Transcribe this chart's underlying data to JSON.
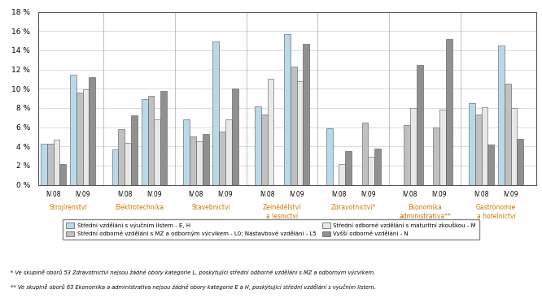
{
  "groups": [
    "Strojírenství",
    "Elektrotechnika",
    "Stavebnictví",
    "Zemědělství\na lesnictví",
    "Zdravotnictví*",
    "Ekonomika\nadministrativa**",
    "Gastronomie\na hotelnictví"
  ],
  "subgroups": [
    "IV.08",
    "IV.09"
  ],
  "series_labels": [
    "Střední vzdělání s výučním listem - E, H",
    "Střední odborné vzdělání s MZ a odborným výcvikem - L0; Nástavbové vzdělání - L5",
    "Střední odborné vzdělání s maturitní zkouškou - M",
    "Vyšší odborné vzdělání - N"
  ],
  "colors": [
    "#b8d9ea",
    "#c0c0c0",
    "#e8e8e8",
    "#909090"
  ],
  "data": {
    "Strojírenství": {
      "IV.08": [
        4.3,
        4.3,
        4.7,
        2.2
      ],
      "IV.09": [
        11.5,
        9.6,
        9.9,
        11.2
      ]
    },
    "Elektrotechnika": {
      "IV.08": [
        3.7,
        5.8,
        4.4,
        7.2
      ],
      "IV.09": [
        8.9,
        9.3,
        6.8,
        9.8
      ]
    },
    "Stavebnictví": {
      "IV.08": [
        6.8,
        5.0,
        4.5,
        5.3
      ],
      "IV.09": [
        14.9,
        5.5,
        6.8,
        10.0
      ]
    },
    "Zemědělství\na lesnictví": {
      "IV.08": [
        8.2,
        7.3,
        11.0,
        null
      ],
      "IV.09": [
        15.7,
        12.3,
        10.8,
        14.7
      ]
    },
    "Zdravotnictví*": {
      "IV.08": [
        5.9,
        null,
        2.2,
        3.5
      ],
      "IV.09": [
        null,
        6.5,
        2.9,
        3.8
      ]
    },
    "Ekonomika\nadministrativa**": {
      "IV.08": [
        null,
        6.2,
        8.0,
        12.5
      ],
      "IV.09": [
        null,
        6.0,
        7.8,
        15.2
      ]
    },
    "Gastronomie\na hotelnictví": {
      "IV.08": [
        8.5,
        7.3,
        8.1,
        4.2
      ],
      "IV.09": [
        14.5,
        10.5,
        8.0,
        4.8
      ]
    }
  },
  "ylim": [
    0,
    18
  ],
  "yticks": [
    0,
    2,
    4,
    6,
    8,
    10,
    12,
    14,
    16,
    18
  ],
  "group_label_color": "#cc7700",
  "footnote1": "* Ve skupině oborů 53 Zdravotnictví nejsou žádné obory kategorie L, poskytující střední odborné vzdělání s MZ a odborným výcvikem.",
  "footnote2": "** Ve skupině oborů 63 Ekonomika a administrativa nejsou žádné obory kategorie E a H, poskytující střední vzdělání s vyučním listem."
}
